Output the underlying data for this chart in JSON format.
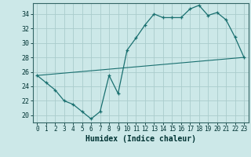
{
  "background_color": "#cce8e8",
  "grid_color": "#aacccc",
  "line_color": "#1a7070",
  "xlabel": "Humidex (Indice chaleur)",
  "xlim": [
    -0.5,
    23.5
  ],
  "ylim": [
    19.0,
    35.5
  ],
  "yticks": [
    20,
    22,
    24,
    26,
    28,
    30,
    32,
    34
  ],
  "xticks": [
    0,
    1,
    2,
    3,
    4,
    5,
    6,
    7,
    8,
    9,
    10,
    11,
    12,
    13,
    14,
    15,
    16,
    17,
    18,
    19,
    20,
    21,
    22,
    23
  ],
  "line1_x": [
    0,
    1,
    2,
    3,
    4,
    5,
    6,
    7,
    8,
    9,
    10,
    11,
    12,
    13,
    14,
    15,
    16,
    17,
    18,
    19,
    20,
    21,
    22,
    23
  ],
  "line1_y": [
    25.5,
    24.5,
    23.5,
    22.0,
    21.5,
    20.5,
    19.5,
    20.5,
    25.5,
    23.0,
    29.0,
    30.7,
    32.5,
    34.0,
    33.5,
    33.5,
    33.5,
    34.7,
    35.2,
    33.8,
    34.2,
    33.2,
    30.8,
    28.0
  ],
  "line2_x": [
    0,
    23
  ],
  "line2_y": [
    25.5,
    28.0
  ],
  "figwidth": 3.2,
  "figheight": 2.0,
  "dpi": 100
}
